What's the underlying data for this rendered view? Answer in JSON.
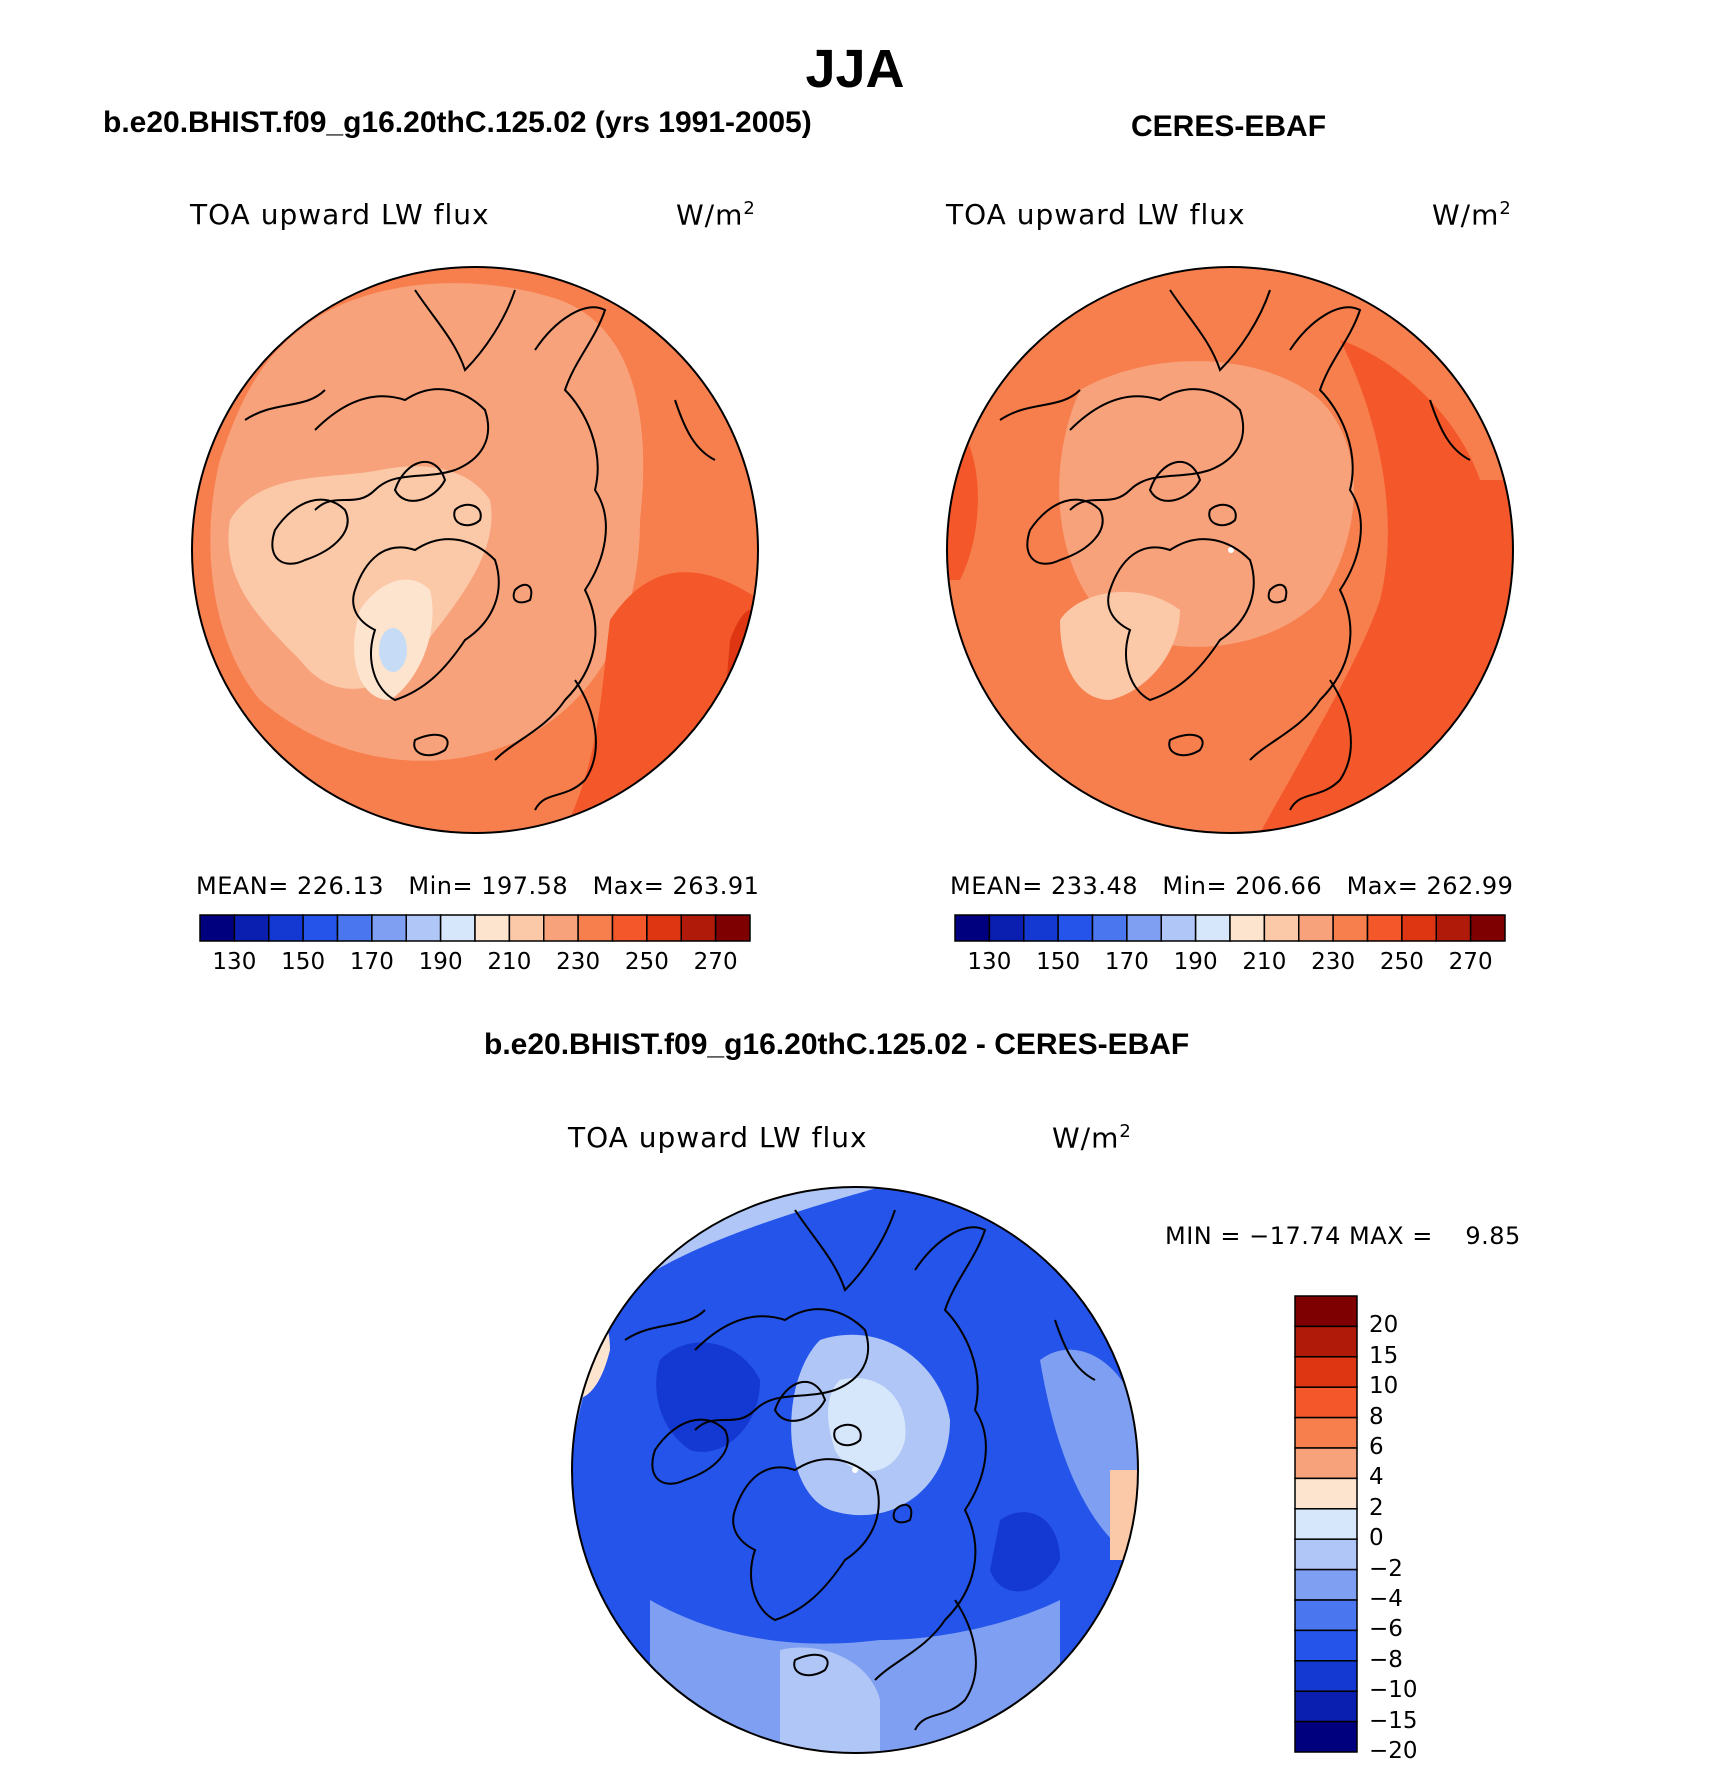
{
  "title": "JJA",
  "panels": [
    {
      "subtitle": "b.e20.BHIST.f09_g16.20thC.125.02 (yrs 1991-2005)",
      "variable": "TOA upward LW flux",
      "unit": "W/m",
      "unit_exp": "2",
      "mean_label": "MEAN=",
      "mean_value": "226.13",
      "min_label": "Min=",
      "min_value": "197.58",
      "max_label": "Max=",
      "max_value": "263.91"
    },
    {
      "subtitle": "CERES-EBAF",
      "variable": "TOA upward LW flux",
      "unit": "W/m",
      "unit_exp": "2",
      "mean_label": "MEAN=",
      "mean_value": "233.48",
      "min_label": "Min=",
      "min_value": "206.66",
      "max_label": "Max=",
      "max_value": "262.99"
    }
  ],
  "diff_panel": {
    "subtitle": "b.e20.BHIST.f09_g16.20thC.125.02 - CERES-EBAF",
    "variable": "TOA upward LW flux",
    "unit": "W/m",
    "unit_exp": "2",
    "minmax_text": "MIN = −17.74 MAX =    9.85"
  },
  "colorbars": {
    "absolute": {
      "colors": [
        "#00007f",
        "#0a1eb0",
        "#1438d2",
        "#2454ea",
        "#4a76f0",
        "#7f9ff2",
        "#b0c6f6",
        "#d6e7fb",
        "#fde4cf",
        "#fbc8a8",
        "#f8a27b",
        "#f77f4e",
        "#f4582a",
        "#de3512",
        "#b01a09",
        "#7f0000"
      ],
      "tick_labels": [
        "130",
        "150",
        "170",
        "190",
        "210",
        "230",
        "250",
        "270"
      ]
    },
    "difference": {
      "colors": [
        "#7f0000",
        "#b01a09",
        "#de3512",
        "#f4582a",
        "#f77f4e",
        "#f8a27b",
        "#fde4cf",
        "#d6e7fb",
        "#b0c6f6",
        "#7f9ff2",
        "#4a76f0",
        "#2454ea",
        "#1438d2",
        "#0a1eb0",
        "#00007f"
      ],
      "tick_labels": [
        "20",
        "15",
        "10",
        "8",
        "6",
        "4",
        "2",
        "0",
        "−2",
        "−4",
        "−6",
        "−8",
        "−10",
        "−15",
        "−20"
      ]
    }
  },
  "map_colors": {
    "model": [
      "#f8a27b",
      "#f77f4e",
      "#fbc8a8",
      "#fde4cf",
      "#f4582a",
      "#c6dcf6"
    ],
    "obs": [
      "#f77f4e",
      "#f8a27b",
      "#f4582a",
      "#fbc8a8"
    ],
    "diff": [
      "#2454ea",
      "#1438d2",
      "#4a76f0",
      "#7f9ff2",
      "#b0c6f6",
      "#d6e7fb",
      "#fde4cf"
    ]
  }
}
